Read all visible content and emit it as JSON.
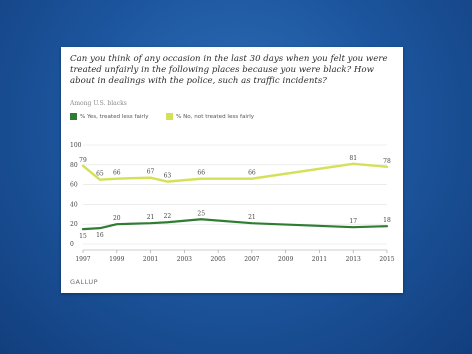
{
  "slide": {
    "question": "Can you think of any occasion in the last 30 days when you felt you were treated unfairly in the following places because you were black? How about in dealings with the police, such as traffic incidents?",
    "subtitle": "Among U.S. blacks",
    "brand": "GALLUP",
    "colors": {
      "background": "#1d57a0",
      "yes": "#2e7d32",
      "no": "#d4e157"
    }
  },
  "chart_data": {
    "type": "line",
    "title": "",
    "xlabel": "",
    "ylabel": "",
    "xlim": [
      1997,
      2015
    ],
    "ylim": [
      0,
      100
    ],
    "x_ticks": [
      "1997",
      "1999",
      "2001",
      "2003",
      "2005",
      "2007",
      "2009",
      "2011",
      "2013",
      "2015"
    ],
    "y_ticks": [
      "0",
      "20",
      "40",
      "60",
      "80",
      "100"
    ],
    "grid": true,
    "legend": "top-left",
    "series": [
      {
        "name": "% Yes, treated less fairly",
        "color": "#2e7d32",
        "x": [
          1997,
          1998,
          1999,
          2001,
          2002,
          2004,
          2007,
          2013,
          2015
        ],
        "y": [
          15,
          16,
          20,
          21,
          22,
          25,
          21,
          17,
          18
        ],
        "labels": [
          "15",
          "16",
          "20",
          "21",
          "22",
          "25",
          "21",
          "17",
          "18"
        ]
      },
      {
        "name": "% No, not treated less fairly",
        "color": "#d4e157",
        "x": [
          1997,
          1998,
          1999,
          2001,
          2002,
          2004,
          2007,
          2013,
          2015
        ],
        "y": [
          79,
          65,
          66,
          67,
          63,
          66,
          66,
          81,
          78
        ],
        "labels": [
          "79",
          "65",
          "66",
          "67",
          "63",
          "66",
          "66",
          "81",
          "78"
        ]
      }
    ]
  }
}
